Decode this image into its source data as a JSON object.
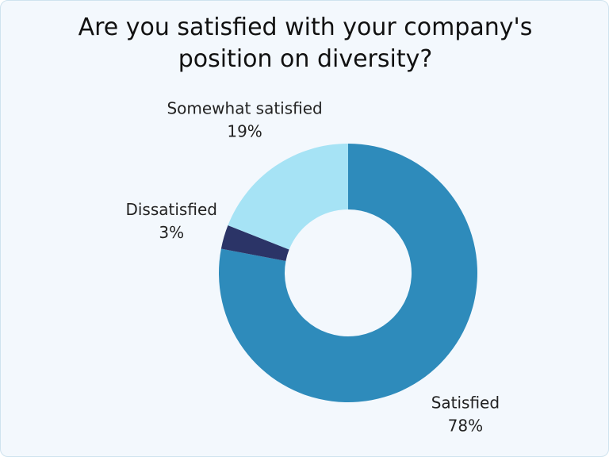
{
  "chart_data": {
    "type": "donut",
    "title": "Are you satisfied with your company's position on diversity?",
    "categories": [
      "Satisfied",
      "Dissatisfied",
      "Somewhat satisfied"
    ],
    "values": [
      78,
      3,
      19
    ],
    "value_labels": [
      "78%",
      "3%",
      "19%"
    ],
    "colors": [
      "#2e8bbb",
      "#2b3467",
      "#a6e3f5"
    ]
  }
}
